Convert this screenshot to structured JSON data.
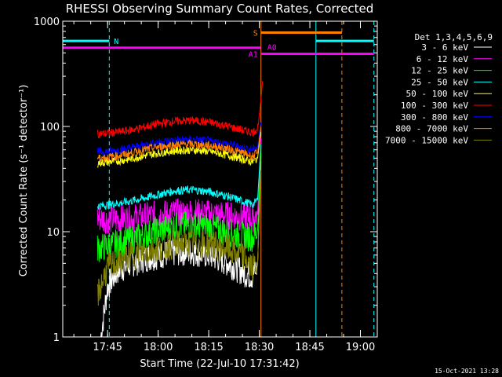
{
  "chart_data": {
    "type": "line",
    "title": "RHESSI Observing Summary Count Rates, Corrected",
    "xlabel": "Start Time (22-Jul-10 17:31:42)",
    "ylabel": "Corrected Count Rate (s⁻¹ detector⁻¹)",
    "yscale": "log",
    "ylim": [
      1,
      1000
    ],
    "xlim_minutes_after_1730": [
      1.7,
      95
    ],
    "x_ticks": [
      {
        "label": "17:45",
        "min": 15
      },
      {
        "label": "18:00",
        "min": 30
      },
      {
        "label": "18:15",
        "min": 45
      },
      {
        "label": "18:30",
        "min": 60
      },
      {
        "label": "18:45",
        "min": 75
      },
      {
        "label": "19:00",
        "min": 90
      }
    ],
    "y_ticks": [
      {
        "label": "1",
        "value": 1
      },
      {
        "label": "10",
        "value": 10
      },
      {
        "label": "100",
        "value": 100
      },
      {
        "label": "1000",
        "value": 1000
      }
    ],
    "legend_title": "Det 1,3,4,5,6,9",
    "legend_position": "right",
    "series": [
      {
        "name": "3 - 6 keV",
        "color": "#ffffff",
        "x": [
          13,
          15,
          18,
          22,
          26,
          30,
          34,
          38,
          42,
          46,
          50,
          54,
          56,
          58,
          59.5,
          60.5
        ],
        "y": [
          1.0,
          3.0,
          4.3,
          5.0,
          5.6,
          6.0,
          6.3,
          6.5,
          6.3,
          5.9,
          5.2,
          4.4,
          4.0,
          3.8,
          4.8,
          60
        ]
      },
      {
        "name": "6 - 12 keV",
        "color": "#ff00ff",
        "x": [
          12,
          15,
          20,
          25,
          30,
          35,
          40,
          45,
          50,
          55,
          58,
          59.5,
          60.5
        ],
        "y": [
          13.5,
          13.0,
          13.2,
          13.8,
          14.5,
          15.0,
          15.2,
          14.8,
          14.3,
          13.8,
          13.5,
          14.5,
          80
        ]
      },
      {
        "name": "12 - 25 keV",
        "color": "#00ff00",
        "x": [
          12,
          15,
          20,
          25,
          30,
          35,
          40,
          45,
          50,
          55,
          58,
          59.5,
          60.5
        ],
        "y": [
          6.9,
          7.3,
          8.0,
          9.0,
          10.3,
          11.2,
          11.6,
          11.0,
          10.0,
          9.2,
          8.8,
          10.0,
          60
        ]
      },
      {
        "name": "25 - 50 keV",
        "color": "#00ffff",
        "x": [
          12,
          15,
          20,
          25,
          30,
          35,
          40,
          45,
          50,
          55,
          58,
          59.5,
          60.5
        ],
        "y": [
          17.5,
          18.0,
          19.0,
          20.5,
          22.5,
          24.5,
          25.0,
          24.0,
          22.0,
          19.5,
          18.0,
          20.0,
          70
        ]
      },
      {
        "name": "50 - 100 keV",
        "color": "#ffff00",
        "x": [
          12,
          15,
          20,
          25,
          30,
          35,
          40,
          45,
          50,
          55,
          58,
          59.5,
          60.5
        ],
        "y": [
          45,
          46,
          48,
          52,
          56,
          59,
          60,
          58,
          54,
          49,
          46,
          50,
          90
        ]
      },
      {
        "name": "100 - 300 keV",
        "color": "#ff0000",
        "x": [
          12,
          15,
          20,
          25,
          30,
          35,
          40,
          45,
          50,
          55,
          58,
          59.5,
          60.5,
          61
        ],
        "y": [
          85,
          86,
          90,
          97,
          106,
          112,
          114,
          110,
          102,
          92,
          88,
          95,
          180,
          280
        ]
      },
      {
        "name": "300 - 800 keV",
        "color": "#0000ff",
        "x": [
          12,
          15,
          20,
          25,
          30,
          35,
          40,
          45,
          50,
          55,
          58,
          59.5,
          60.5
        ],
        "y": [
          57,
          58,
          61,
          66,
          71,
          74,
          75,
          73,
          69,
          63,
          60,
          64,
          110
        ]
      },
      {
        "name": "800 - 7000 keV",
        "color": "#ff8000",
        "x": [
          12,
          15,
          20,
          25,
          30,
          35,
          40,
          45,
          50,
          55,
          58,
          59.5,
          60.5
        ],
        "y": [
          50,
          51,
          54,
          59,
          64,
          67,
          68,
          66,
          62,
          56,
          52,
          56,
          100
        ]
      },
      {
        "name": "7000 - 15000 keV",
        "color": "#808000",
        "x": [
          12,
          15,
          20,
          25,
          30,
          35,
          40,
          45,
          50,
          55,
          58,
          59.5,
          60.5
        ],
        "y": [
          2.5,
          4.6,
          5.5,
          6.4,
          7.0,
          7.5,
          7.8,
          7.6,
          7.0,
          6.0,
          4.5,
          5.0,
          40
        ]
      }
    ],
    "flags": [
      {
        "label": "N",
        "color": "#00ffff",
        "y": 650,
        "segments": [
          [
            1.7,
            15.5
          ],
          [
            76.8,
            94
          ]
        ]
      },
      {
        "label": "S",
        "color": "#ff8000",
        "y": 780,
        "segments": [
          [
            60.5,
            84.5
          ]
        ]
      },
      {
        "label": "A1",
        "color": "#ff00ff",
        "y": 560,
        "segments": [
          [
            1.7,
            60.5
          ]
        ]
      },
      {
        "label": "A0",
        "color": "#ff00ff",
        "y": 490,
        "segments": [
          [
            60.5,
            94
          ]
        ]
      }
    ],
    "vertical_markers": [
      {
        "color": "#00ffff",
        "style": "solid",
        "x": 1.7
      },
      {
        "color": "#00ffff",
        "style": "dashed",
        "x": 15.5
      },
      {
        "color": "#ff8000",
        "style": "solid",
        "x": 60.5
      },
      {
        "color": "#00ffff",
        "style": "solid",
        "x": 76.8
      },
      {
        "color": "#ff8000",
        "style": "dashed",
        "x": 84.5
      },
      {
        "color": "#00ffff",
        "style": "dashed",
        "x": 94
      }
    ]
  },
  "footer": {
    "timestamp": "15-Oct-2021 13:28"
  }
}
